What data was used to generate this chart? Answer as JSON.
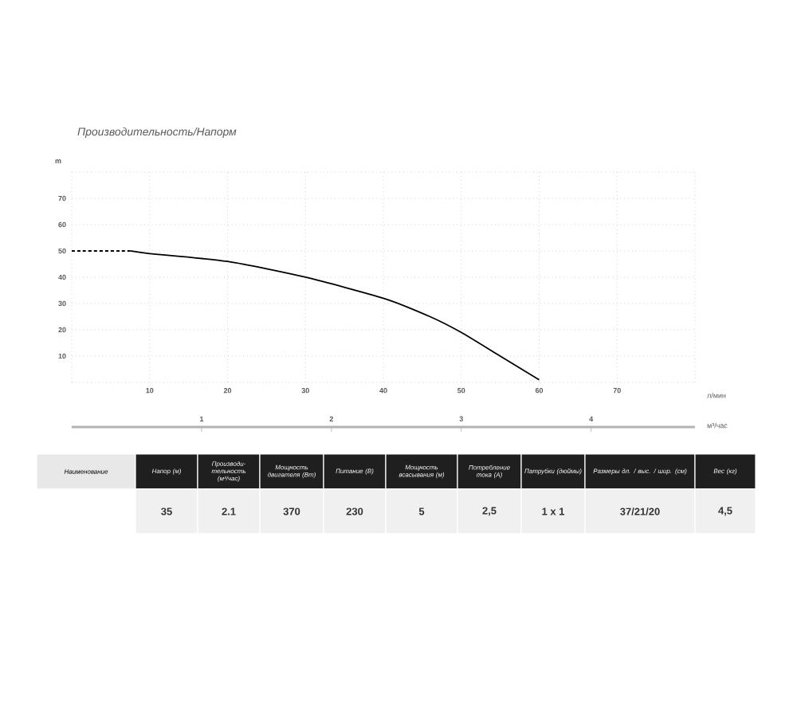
{
  "chart_data": {
    "type": "line",
    "title": "Производительность/Напорм",
    "xlabel": "л/мин",
    "ylabel": "m",
    "x2label": "м³/час",
    "xlim": [
      0,
      80
    ],
    "ylim": [
      0,
      80
    ],
    "x2lim": [
      0,
      4.8
    ],
    "xticks": [
      {
        "value": 0,
        "label": null
      },
      10,
      20,
      30,
      40,
      50,
      60,
      70,
      {
        "value": 80,
        "label": null
      }
    ],
    "yticks": [
      {
        "value": 0,
        "label": null
      },
      10,
      20,
      30,
      40,
      50,
      60,
      70,
      {
        "value": 80,
        "label": null
      }
    ],
    "x2ticks": [
      1,
      2,
      3,
      4
    ],
    "grid": true,
    "marker": "none",
    "series": [
      {
        "x": [
          0,
          7.5
        ],
        "values": [
          50,
          50
        ],
        "color": "#000000",
        "line_style": "dashed"
      },
      {
        "x": [
          7.5,
          10,
          20,
          30,
          40,
          46,
          50,
          55,
          60
        ],
        "values": [
          50,
          49,
          46,
          40,
          32,
          25,
          19,
          10,
          1
        ],
        "color": "#000000",
        "line_style": "solid"
      }
    ],
    "annotations": [
      "Наименование",
      "Напор (м)",
      "Производи-тельность (м³/час)",
      "Мощность двигателя (Вт)",
      "Питание (В)",
      "Мощность всасывания (м)",
      "Потребление тока (А)",
      "Патрубки (дюймы)",
      "Размеры дл. / выс. / шир. (см)",
      "Вес (кг)",
      "35",
      "2.1",
      "370",
      "230",
      "5",
      "2,5",
      "1 x 1",
      "37/21/20",
      "4,5"
    ]
  }
}
